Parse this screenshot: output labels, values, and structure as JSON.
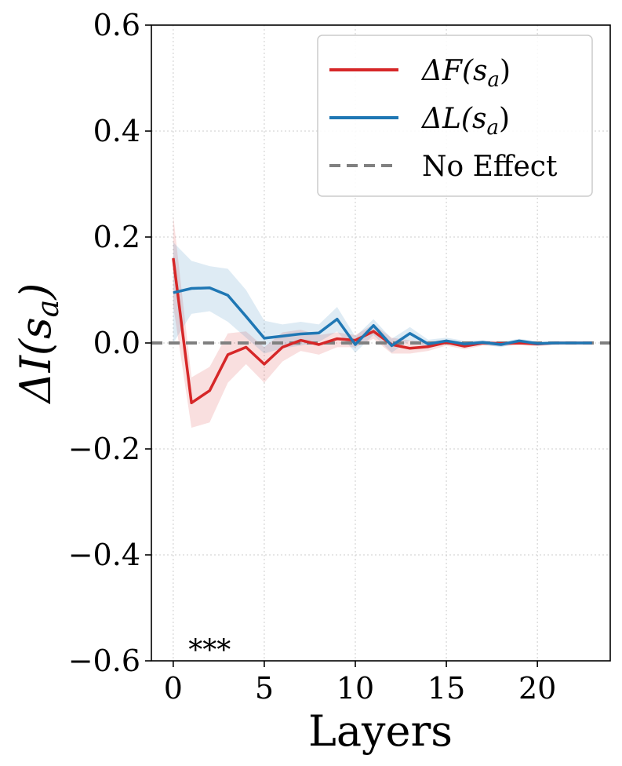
{
  "chart_data": {
    "type": "line",
    "xlabel": "Layers",
    "ylabel_main": "ΔI(s",
    "ylabel_sub": "a",
    "ylabel_tail": ")",
    "xlim": [
      -1.2,
      24
    ],
    "ylim": [
      -0.6,
      0.6
    ],
    "xticks": [
      0,
      5,
      10,
      15,
      20
    ],
    "yticks": [
      -0.6,
      -0.4,
      -0.2,
      0.0,
      0.2,
      0.4,
      0.6
    ],
    "ytick_labels": [
      "−0.6",
      "−0.4",
      "−0.2",
      "0.0",
      "0.2",
      "0.4",
      "0.6"
    ],
    "grid": true,
    "legend_position": "top-right",
    "x": [
      0,
      1,
      2,
      3,
      4,
      5,
      6,
      7,
      8,
      9,
      10,
      11,
      12,
      13,
      14,
      15,
      16,
      17,
      18,
      19,
      20,
      21,
      22,
      23
    ],
    "series": [
      {
        "name_main": "ΔF(s",
        "name_sub": "a",
        "name_tail": ")",
        "color": "#d62728",
        "values": [
          0.16,
          -0.113,
          -0.09,
          -0.022,
          -0.008,
          -0.04,
          -0.008,
          0.005,
          -0.003,
          0.008,
          0.005,
          0.022,
          -0.003,
          -0.01,
          -0.007,
          0.001,
          -0.006,
          0.0,
          -0.001,
          0.0,
          -0.002,
          0.0,
          0.0,
          0.0
        ],
        "band_upper": [
          0.24,
          -0.065,
          -0.045,
          0.018,
          0.022,
          -0.008,
          0.02,
          0.025,
          0.015,
          0.02,
          0.015,
          0.035,
          0.01,
          0.005,
          0.003,
          0.006,
          0.002,
          0.004,
          0.003,
          0.003,
          0.002,
          0.002,
          0.001,
          0.001
        ],
        "band_lower": [
          0.07,
          -0.16,
          -0.15,
          -0.075,
          -0.04,
          -0.075,
          -0.035,
          -0.015,
          -0.022,
          -0.008,
          -0.008,
          0.008,
          -0.02,
          -0.02,
          -0.015,
          -0.005,
          -0.012,
          -0.005,
          -0.006,
          -0.004,
          -0.006,
          -0.003,
          -0.002,
          -0.002
        ]
      },
      {
        "name_main": "ΔL(s",
        "name_sub": "a",
        "name_tail": ")",
        "color": "#1f77b4",
        "values": [
          0.095,
          0.103,
          0.104,
          0.09,
          0.05,
          0.009,
          0.013,
          0.017,
          0.019,
          0.045,
          -0.003,
          0.033,
          -0.005,
          0.018,
          -0.002,
          0.004,
          -0.002,
          0.001,
          -0.003,
          0.004,
          -0.001,
          0.0,
          0.0,
          0.0
        ],
        "band_upper": [
          0.19,
          0.155,
          0.145,
          0.14,
          0.1,
          0.042,
          0.035,
          0.04,
          0.035,
          0.068,
          0.012,
          0.045,
          0.008,
          0.03,
          0.006,
          0.01,
          0.004,
          0.005,
          0.002,
          0.008,
          0.003,
          0.002,
          0.001,
          0.001
        ],
        "band_lower": [
          0.0,
          0.055,
          0.06,
          0.04,
          0.01,
          -0.02,
          -0.01,
          -0.005,
          0.002,
          0.022,
          -0.018,
          0.015,
          -0.018,
          0.005,
          -0.01,
          -0.002,
          -0.008,
          -0.003,
          -0.008,
          0.0,
          -0.005,
          -0.002,
          -0.001,
          -0.001
        ]
      }
    ],
    "reference_line": {
      "label": "No Effect",
      "y": 0.0,
      "color": "#808080"
    },
    "annotation": {
      "text": "***",
      "x": 2,
      "y": -0.565,
      "color": "#ff0000"
    }
  }
}
